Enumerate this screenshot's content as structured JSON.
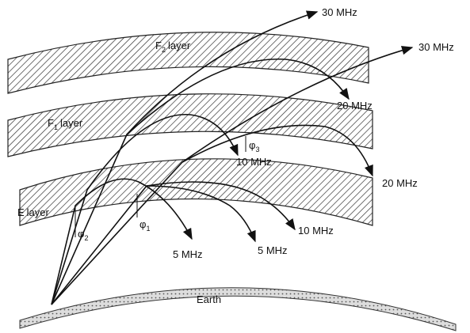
{
  "layers": [
    {
      "letter": "F",
      "subscript": "2",
      "word": "layer"
    },
    {
      "letter": "F",
      "subscript": "1",
      "word": "layer"
    },
    {
      "letter": "E",
      "word": "layer"
    }
  ],
  "earth": "Earth",
  "rays": [
    {
      "label": "30 MHz"
    },
    {
      "label": "30 MHz"
    },
    {
      "label": "20 MHz"
    },
    {
      "label": "20 MHz"
    },
    {
      "label": "10 MHz"
    },
    {
      "label": "10 MHz"
    },
    {
      "label": "5 MHz"
    },
    {
      "label": "5 MHz"
    }
  ],
  "angles": [
    {
      "symbol": "φ",
      "subscript": "1"
    },
    {
      "symbol": "φ",
      "subscript": "2"
    },
    {
      "symbol": "φ",
      "subscript": "3"
    }
  ]
}
